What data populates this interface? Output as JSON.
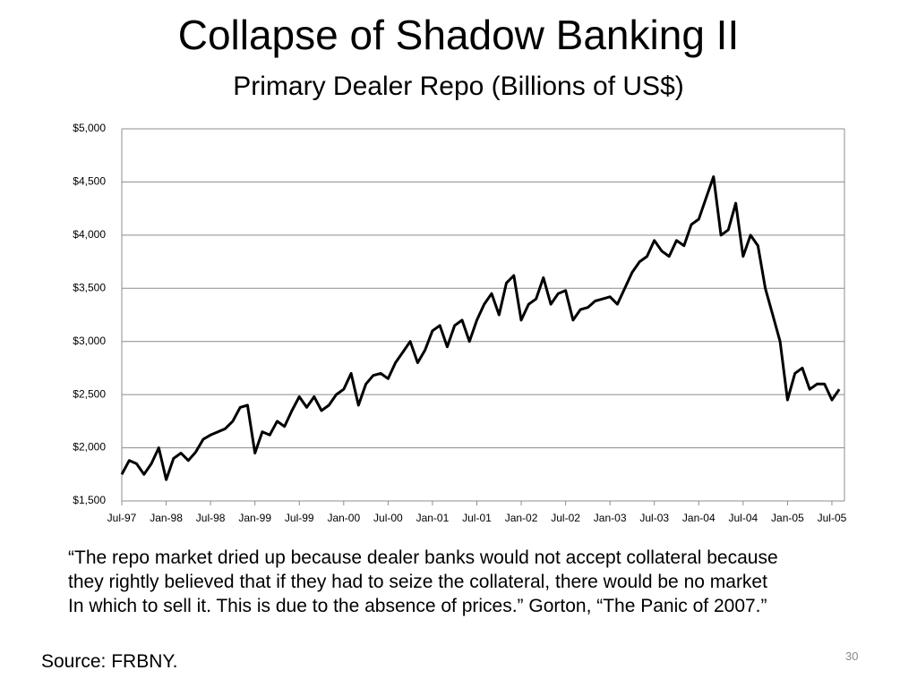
{
  "chart_data": {
    "type": "line",
    "title": "Collapse of Shadow Banking II",
    "subtitle": "Primary Dealer Repo (Billions of US$)",
    "categories": [
      "Jul-97",
      null,
      null,
      null,
      null,
      null,
      "Jan-98",
      null,
      null,
      null,
      null,
      null,
      "Jul-98",
      null,
      null,
      null,
      null,
      null,
      "Jan-99",
      null,
      null,
      null,
      null,
      null,
      "Jul-99",
      null,
      null,
      null,
      null,
      null,
      "Jan-00",
      null,
      null,
      null,
      null,
      null,
      "Jul-00",
      null,
      null,
      null,
      null,
      null,
      "Jan-01",
      null,
      null,
      null,
      null,
      null,
      "Jul-01",
      null,
      null,
      null,
      null,
      null,
      "Jan-02",
      null,
      null,
      null,
      null,
      null,
      "Jul-02",
      null,
      null,
      null,
      null,
      null,
      "Jan-03",
      null,
      null,
      null,
      null,
      null,
      "Jul-03",
      null,
      null,
      null,
      null,
      null,
      "Jan-04",
      null,
      null,
      null,
      null,
      null,
      "Jul-04",
      null,
      null,
      null,
      null,
      null,
      "Jan-05",
      null,
      null,
      null,
      null,
      null,
      "Jul-05",
      null
    ],
    "series": [
      {
        "name": "Primary Dealer Repo",
        "color": "#000000",
        "values": [
          1750,
          1880,
          1850,
          1750,
          1850,
          2000,
          1700,
          1900,
          1950,
          1880,
          1960,
          2080,
          2120,
          2150,
          2180,
          2250,
          2380,
          2400,
          1950,
          2150,
          2120,
          2250,
          2200,
          2350,
          2480,
          2380,
          2480,
          2350,
          2400,
          2500,
          2550,
          2700,
          2400,
          2600,
          2680,
          2700,
          2650,
          2800,
          2900,
          3000,
          2800,
          2920,
          3100,
          3150,
          2950,
          3150,
          3200,
          3000,
          3200,
          3350,
          3450,
          3250,
          3550,
          3620,
          3200,
          3350,
          3400,
          3600,
          3350,
          3450,
          3480,
          3200,
          3300,
          3320,
          3380,
          3400,
          3420,
          3350,
          3500,
          3650,
          3750,
          3800,
          3950,
          3850,
          3800,
          3950,
          3900,
          4100,
          4150,
          4350,
          4550,
          4000,
          4050,
          4300,
          3800,
          4000,
          3900,
          3500,
          3250,
          3000,
          2450,
          2700,
          2750,
          2550,
          2600,
          2600,
          2450,
          2550
        ]
      }
    ],
    "ylim": [
      1500,
      5000
    ],
    "yticks": [
      {
        "value": 1500,
        "label": "$1,500"
      },
      {
        "value": 2000,
        "label": "$2,000"
      },
      {
        "value": 2500,
        "label": "$2,500"
      },
      {
        "value": 3000,
        "label": "$3,000"
      },
      {
        "value": 3500,
        "label": "$3,500"
      },
      {
        "value": 4000,
        "label": "$4,000"
      },
      {
        "value": 4500,
        "label": "$4,500"
      },
      {
        "value": 5000,
        "label": "$5,000"
      }
    ],
    "grid": true
  },
  "quote": [
    "“The repo market dried up because dealer banks would not accept collateral because",
    "they rightly believed that if they had to seize the collateral, there would be no market",
    "In which to sell it. This is due to the absence of prices.” Gorton, “The Panic of 2007.”"
  ],
  "source": "Source: FRBNY.",
  "page_number": "30"
}
